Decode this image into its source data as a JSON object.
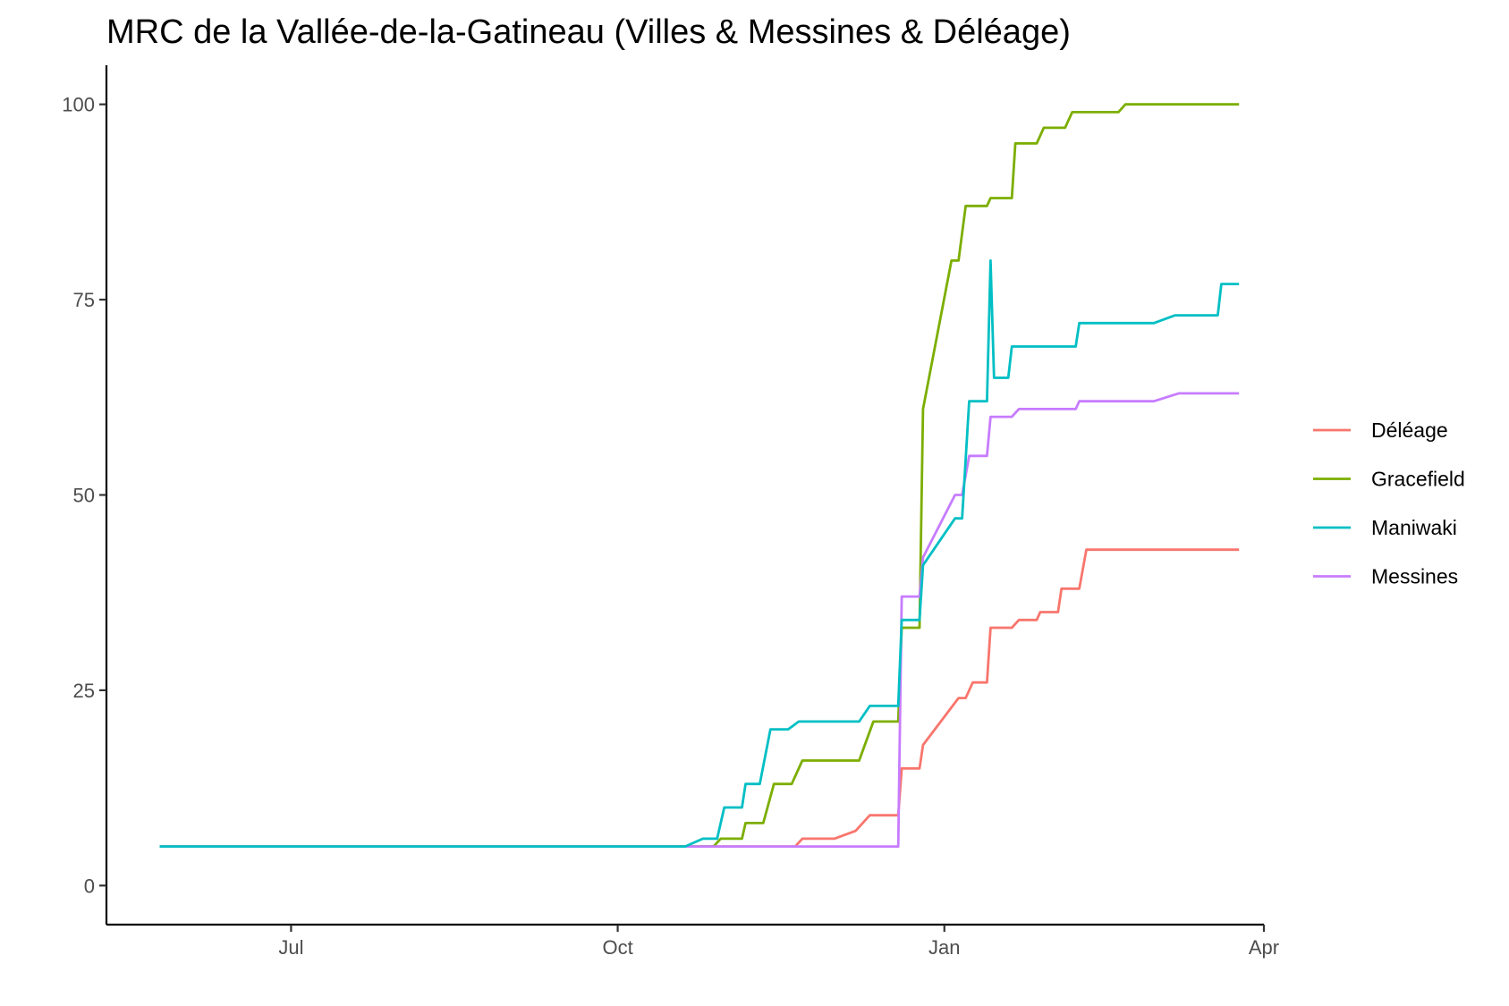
{
  "chart_data": {
    "type": "line",
    "title": "MRC de la Vallée-de-la-Gatineau (Villes & Messines & Déléage)",
    "xlabel": "",
    "ylabel": "",
    "x_axis": {
      "type": "date",
      "range": [
        "2021-05-10",
        "2022-04-01"
      ],
      "ticks": [
        {
          "value": "2021-07-01",
          "label": "Jul"
        },
        {
          "value": "2021-10-01",
          "label": "Oct"
        },
        {
          "value": "2022-01-01",
          "label": "Jan"
        },
        {
          "value": "2022-04-01",
          "label": "Apr"
        }
      ]
    },
    "y_axis": {
      "range": [
        -5,
        105
      ],
      "ticks": [
        0,
        25,
        50,
        75,
        100
      ]
    },
    "grid": false,
    "legend": "right",
    "series": [
      {
        "name": "Déléage",
        "color": "#F8766D",
        "points": [
          [
            "2021-05-25",
            5
          ],
          [
            "2021-10-23",
            5
          ],
          [
            "2021-11-20",
            5
          ],
          [
            "2021-11-22",
            6
          ],
          [
            "2021-12-01",
            6
          ],
          [
            "2021-12-07",
            7
          ],
          [
            "2021-12-11",
            9
          ],
          [
            "2021-12-19",
            9
          ],
          [
            "2021-12-20",
            15
          ],
          [
            "2021-12-25",
            15
          ],
          [
            "2021-12-26",
            18
          ],
          [
            "2022-01-05",
            24
          ],
          [
            "2022-01-07",
            24
          ],
          [
            "2022-01-09",
            26
          ],
          [
            "2022-01-13",
            26
          ],
          [
            "2022-01-14",
            33
          ],
          [
            "2022-01-20",
            33
          ],
          [
            "2022-01-22",
            34
          ],
          [
            "2022-01-27",
            34
          ],
          [
            "2022-01-28",
            35
          ],
          [
            "2022-02-02",
            35
          ],
          [
            "2022-02-03",
            38
          ],
          [
            "2022-02-08",
            38
          ],
          [
            "2022-02-10",
            43
          ],
          [
            "2022-03-25",
            43
          ]
        ]
      },
      {
        "name": "Gracefield",
        "color": "#7CAE00",
        "points": [
          [
            "2021-05-25",
            5
          ],
          [
            "2021-10-28",
            5
          ],
          [
            "2021-10-30",
            6
          ],
          [
            "2021-11-05",
            6
          ],
          [
            "2021-11-06",
            8
          ],
          [
            "2021-11-11",
            8
          ],
          [
            "2021-11-14",
            13
          ],
          [
            "2021-11-19",
            13
          ],
          [
            "2021-11-22",
            16
          ],
          [
            "2021-12-08",
            16
          ],
          [
            "2021-12-12",
            21
          ],
          [
            "2021-12-19",
            21
          ],
          [
            "2021-12-20",
            33
          ],
          [
            "2021-12-25",
            33
          ],
          [
            "2021-12-26",
            61
          ],
          [
            "2022-01-03",
            80
          ],
          [
            "2022-01-05",
            80
          ],
          [
            "2022-01-07",
            87
          ],
          [
            "2022-01-13",
            87
          ],
          [
            "2022-01-14",
            88
          ],
          [
            "2022-01-20",
            88
          ],
          [
            "2022-01-21",
            95
          ],
          [
            "2022-01-27",
            95
          ],
          [
            "2022-01-29",
            97
          ],
          [
            "2022-02-04",
            97
          ],
          [
            "2022-02-06",
            99
          ],
          [
            "2022-02-19",
            99
          ],
          [
            "2022-02-21",
            100
          ],
          [
            "2022-03-25",
            100
          ]
        ]
      },
      {
        "name": "Maniwaki",
        "color": "#00BFC4",
        "points": [
          [
            "2021-05-25",
            5
          ],
          [
            "2021-10-20",
            5
          ],
          [
            "2021-10-25",
            6
          ],
          [
            "2021-10-29",
            6
          ],
          [
            "2021-10-31",
            10
          ],
          [
            "2021-11-05",
            10
          ],
          [
            "2021-11-06",
            13
          ],
          [
            "2021-11-10",
            13
          ],
          [
            "2021-11-13",
            20
          ],
          [
            "2021-11-18",
            20
          ],
          [
            "2021-11-21",
            21
          ],
          [
            "2021-12-08",
            21
          ],
          [
            "2021-12-11",
            23
          ],
          [
            "2021-12-19",
            23
          ],
          [
            "2021-12-20",
            34
          ],
          [
            "2021-12-25",
            34
          ],
          [
            "2021-12-26",
            41
          ],
          [
            "2022-01-04",
            47
          ],
          [
            "2022-01-06",
            47
          ],
          [
            "2022-01-08",
            62
          ],
          [
            "2022-01-13",
            62
          ],
          [
            "2022-01-14",
            80
          ],
          [
            "2022-01-15",
            65
          ],
          [
            "2022-01-19",
            65
          ],
          [
            "2022-01-20",
            69
          ],
          [
            "2022-02-07",
            69
          ],
          [
            "2022-02-08",
            72
          ],
          [
            "2022-03-01",
            72
          ],
          [
            "2022-03-07",
            73
          ],
          [
            "2022-03-19",
            73
          ],
          [
            "2022-03-20",
            77
          ],
          [
            "2022-03-25",
            77
          ]
        ]
      },
      {
        "name": "Messines",
        "color": "#C77CFF",
        "points": [
          [
            "2021-05-25",
            5
          ],
          [
            "2021-10-22",
            5
          ],
          [
            "2021-12-19",
            5
          ],
          [
            "2021-12-20",
            37
          ],
          [
            "2021-12-25",
            37
          ],
          [
            "2021-12-26",
            42
          ],
          [
            "2022-01-04",
            50
          ],
          [
            "2022-01-06",
            50
          ],
          [
            "2022-01-08",
            55
          ],
          [
            "2022-01-13",
            55
          ],
          [
            "2022-01-14",
            60
          ],
          [
            "2022-01-20",
            60
          ],
          [
            "2022-01-22",
            61
          ],
          [
            "2022-02-07",
            61
          ],
          [
            "2022-02-08",
            62
          ],
          [
            "2022-03-01",
            62
          ],
          [
            "2022-03-08",
            63
          ],
          [
            "2022-03-25",
            63
          ]
        ]
      }
    ]
  }
}
